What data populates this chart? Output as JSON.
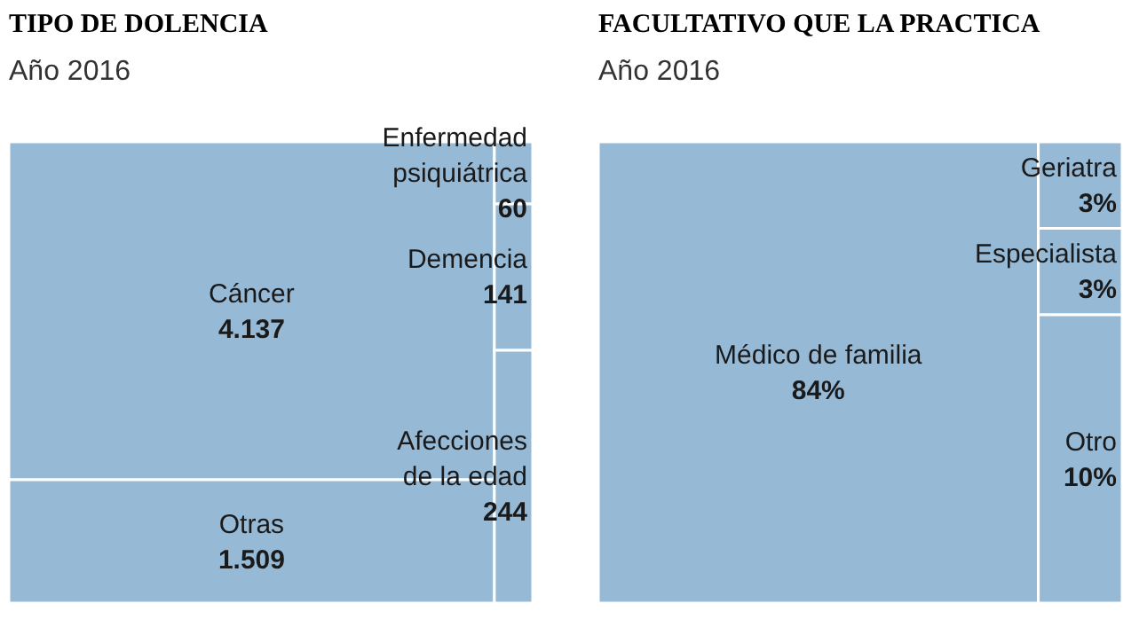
{
  "chart_data": [
    {
      "type": "other",
      "title": "TIPO DE DOLENCIA",
      "subtitle": "Año 2016",
      "categories": [
        "Cáncer",
        "Otras",
        "Enfermedad psiquiátrica",
        "Demencia",
        "Afecciones de la edad"
      ],
      "values": [
        4137,
        1509,
        60,
        141,
        244
      ],
      "value_labels": [
        "4.137",
        "1.509",
        "60",
        "141",
        "244"
      ],
      "color": "#96b9d6"
    },
    {
      "type": "other",
      "title": "FACULTATIVO QUE LA PRACTICA",
      "subtitle": "Año 2016",
      "categories": [
        "Médico de familia",
        "Geriatra",
        "Especialista",
        "Otro"
      ],
      "values": [
        84,
        3,
        3,
        10
      ],
      "value_labels": [
        "84%",
        "3%",
        "3%",
        "10%"
      ],
      "color": "#96b9d6"
    }
  ]
}
